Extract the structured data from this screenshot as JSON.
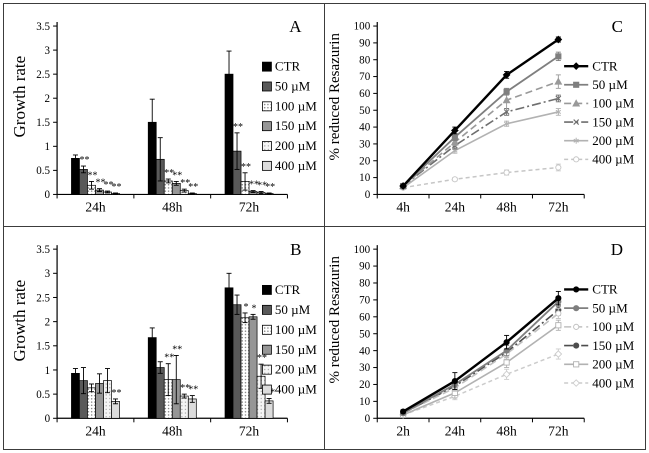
{
  "figure": {
    "description_labels": [
      "A",
      "B",
      "C",
      "D"
    ]
  },
  "chart_data": [
    {
      "panel_label": "A",
      "type": "bar",
      "title": "",
      "xlabel": "",
      "ylabel": "Growth rate",
      "ylim": [
        0,
        3.5
      ],
      "ytick_step": 0.5,
      "ytick_labels": [
        "0",
        "0.5",
        "1",
        "1.5",
        "2",
        "2.5",
        "3",
        "3.5"
      ],
      "categories": [
        "24h",
        "48h",
        "72h"
      ],
      "legend_position": "right",
      "series": [
        {
          "name": "CTR",
          "fill": "#000000",
          "pattern": "solid",
          "values": [
            0.75,
            1.5,
            2.5
          ],
          "errors": [
            0.07,
            0.48,
            0.48
          ],
          "sig": [
            "",
            "",
            ""
          ]
        },
        {
          "name": "50 µM",
          "fill": "#595959",
          "pattern": "solid",
          "values": [
            0.52,
            0.73,
            0.9
          ],
          "errors": [
            0.07,
            0.45,
            0.38
          ],
          "sig": [
            "**",
            "",
            "**"
          ]
        },
        {
          "name": "100 µM",
          "fill": "#ffffff",
          "pattern": "dots",
          "values": [
            0.19,
            0.28,
            0.27
          ],
          "errors": [
            0.08,
            0.04,
            0.18
          ],
          "sig": [
            "**",
            "**",
            "**"
          ]
        },
        {
          "name": "150 µM",
          "fill": "#969696",
          "pattern": "solid",
          "values": [
            0.09,
            0.23,
            0.06
          ],
          "errors": [
            0.03,
            0.04,
            0.02
          ],
          "sig": [
            "**",
            "**",
            "**"
          ]
        },
        {
          "name": "200 µM",
          "fill": "#f4f4f4",
          "pattern": "dots-light",
          "values": [
            0.05,
            0.08,
            0.04
          ],
          "errors": [
            0.02,
            0.03,
            0.02
          ],
          "sig": [
            "**",
            "**",
            "**"
          ]
        },
        {
          "name": "400 µM",
          "fill": "#dcdcdc",
          "pattern": "solid",
          "values": [
            0.02,
            0.02,
            0.02
          ],
          "errors": [
            0.01,
            0.01,
            0.01
          ],
          "sig": [
            "**",
            "**",
            "**"
          ]
        }
      ]
    },
    {
      "panel_label": "C",
      "type": "line",
      "title": "",
      "xlabel": "",
      "ylabel": "% reduced Resazurin",
      "ylim": [
        0,
        100
      ],
      "ytick_step": 10,
      "ytick_labels": [
        "0",
        "10",
        "20",
        "30",
        "40",
        "50",
        "60",
        "70",
        "80",
        "90",
        "100"
      ],
      "categories": [
        "4h",
        "24h",
        "48h",
        "72h"
      ],
      "legend_position": "right",
      "series": [
        {
          "name": "CTR",
          "color": "#000000",
          "dash": "solid",
          "marker": "diamond",
          "marker_filled": true,
          "width": 2.4,
          "values": [
            5,
            38,
            71,
            92
          ],
          "errors": [
            1,
            2,
            2,
            1.5
          ]
        },
        {
          "name": "50 µM",
          "color": "#7f7f7f",
          "dash": "solid",
          "marker": "square",
          "marker_filled": true,
          "width": 1.8,
          "values": [
            5,
            34,
            61,
            82
          ],
          "errors": [
            1,
            2,
            2,
            2.5
          ]
        },
        {
          "name": "100 µM",
          "color": "#999999",
          "dash": "dash",
          "marker": "triangle",
          "marker_filled": true,
          "width": 1.6,
          "values": [
            5,
            31,
            56,
            67
          ],
          "errors": [
            1,
            2,
            6,
            4
          ]
        },
        {
          "name": "150 µM",
          "color": "#6e6e6e",
          "dash": "dashdot",
          "marker": "x",
          "marker_filled": false,
          "width": 1.6,
          "values": [
            5,
            29,
            49,
            57
          ],
          "errors": [
            1,
            2,
            2,
            2
          ]
        },
        {
          "name": "200 µM",
          "color": "#b2b2b2",
          "dash": "solid",
          "marker": "asterisk",
          "marker_filled": false,
          "width": 1.6,
          "values": [
            4,
            26,
            42,
            49
          ],
          "errors": [
            1,
            1.5,
            1.5,
            2
          ]
        },
        {
          "name": "400 µM",
          "color": "#c6c6c6",
          "dash": "dash-small",
          "marker": "circle",
          "marker_filled": false,
          "width": 1.5,
          "values": [
            4,
            9,
            13,
            16
          ],
          "errors": [
            0.5,
            1,
            1.5,
            2
          ]
        }
      ]
    },
    {
      "panel_label": "B",
      "type": "bar",
      "title": "",
      "xlabel": "",
      "ylabel": "Growth rate",
      "ylim": [
        0,
        3.5
      ],
      "ytick_step": 0.5,
      "ytick_labels": [
        "0",
        "0.5",
        "1",
        "1.5",
        "2",
        "2.5",
        "3",
        "3.5"
      ],
      "categories": [
        "24h",
        "48h",
        "72h"
      ],
      "legend_position": "right",
      "series": [
        {
          "name": "CTR",
          "fill": "#000000",
          "pattern": "solid",
          "values": [
            0.93,
            1.67,
            2.7
          ],
          "errors": [
            0.1,
            0.2,
            0.3
          ],
          "sig": [
            "",
            "",
            ""
          ]
        },
        {
          "name": "50 µM",
          "fill": "#595959",
          "pattern": "solid",
          "values": [
            0.78,
            1.05,
            2.35
          ],
          "errors": [
            0.27,
            0.12,
            0.2
          ],
          "sig": [
            "",
            "",
            ""
          ]
        },
        {
          "name": "100 µM",
          "fill": "#ffffff",
          "pattern": "dots",
          "values": [
            0.63,
            0.8,
            2.08
          ],
          "errors": [
            0.08,
            0.33,
            0.1
          ],
          "sig": [
            "",
            "**",
            "*"
          ]
        },
        {
          "name": "150 µM",
          "fill": "#969696",
          "pattern": "solid",
          "values": [
            0.72,
            0.8,
            2.1
          ],
          "errors": [
            0.2,
            0.5,
            0.05
          ],
          "sig": [
            "",
            "**",
            "*"
          ]
        },
        {
          "name": "200 µM",
          "fill": "#f4f4f4",
          "pattern": "dots-light",
          "values": [
            0.78,
            0.46,
            0.87
          ],
          "errors": [
            0.25,
            0.04,
            0.25
          ],
          "sig": [
            "",
            "**",
            "**"
          ]
        },
        {
          "name": "400 µM",
          "fill": "#dcdcdc",
          "pattern": "solid",
          "values": [
            0.35,
            0.4,
            0.36
          ],
          "errors": [
            0.05,
            0.07,
            0.05
          ],
          "sig": [
            "**",
            "**",
            "**"
          ]
        }
      ]
    },
    {
      "panel_label": "D",
      "type": "line",
      "title": "",
      "xlabel": "",
      "ylabel": "% reduced Resazurin",
      "ylim": [
        0,
        100
      ],
      "ytick_step": 10,
      "ytick_labels": [
        "0",
        "10",
        "20",
        "30",
        "40",
        "50",
        "60",
        "70",
        "80",
        "90",
        "100"
      ],
      "categories": [
        "2h",
        "24h",
        "48h",
        "72h"
      ],
      "legend_position": "right",
      "series": [
        {
          "name": "CTR",
          "color": "#000000",
          "dash": "solid",
          "marker": "circle",
          "marker_filled": true,
          "width": 2.4,
          "values": [
            4,
            22,
            45,
            71
          ],
          "errors": [
            1,
            5,
            4,
            4
          ]
        },
        {
          "name": "50 µM",
          "color": "#7f7f7f",
          "dash": "solid",
          "marker": "circle",
          "marker_filled": true,
          "width": 1.8,
          "values": [
            3,
            20,
            40,
            69
          ],
          "errors": [
            1,
            2,
            3,
            3
          ]
        },
        {
          "name": "100 µM",
          "color": "#c0c0c0",
          "dash": "dash",
          "marker": "circle",
          "marker_filled": false,
          "width": 1.6,
          "values": [
            3,
            18,
            38,
            62
          ],
          "errors": [
            1,
            2,
            3,
            3
          ]
        },
        {
          "name": "150 µM",
          "color": "#4d4d4d",
          "dash": "dashdot",
          "marker": "circle",
          "marker_filled": true,
          "width": 1.6,
          "values": [
            3,
            19,
            39,
            64
          ],
          "errors": [
            1,
            2,
            2,
            3
          ]
        },
        {
          "name": "200 µM",
          "color": "#b2b2b2",
          "dash": "solid",
          "marker": "square",
          "marker_filled": false,
          "width": 1.6,
          "values": [
            2,
            15,
            33,
            55
          ],
          "errors": [
            1,
            3,
            3,
            3
          ]
        },
        {
          "name": "400 µM",
          "color": "#cccccc",
          "dash": "dash-small",
          "marker": "diamond",
          "marker_filled": false,
          "width": 1.5,
          "values": [
            2,
            13,
            26,
            38
          ],
          "errors": [
            0.5,
            2,
            3,
            3
          ]
        }
      ]
    }
  ]
}
